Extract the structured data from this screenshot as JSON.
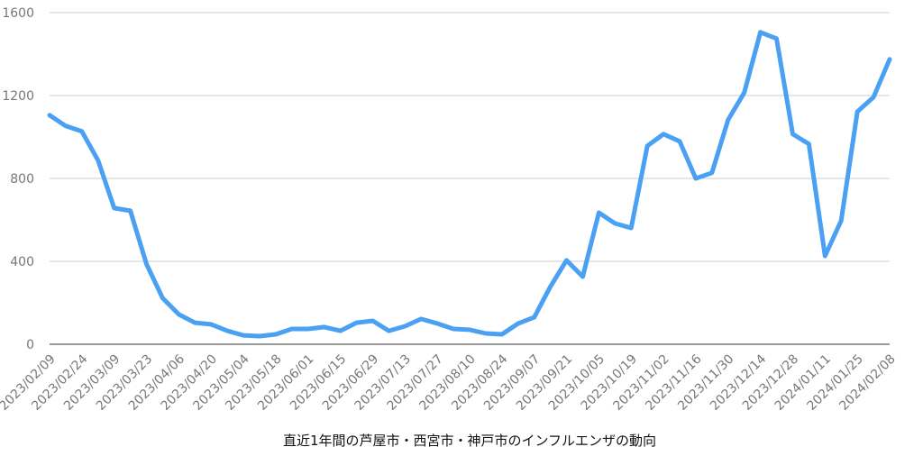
{
  "chart_data": {
    "type": "line",
    "title": "直近1年間の芦屋市・西宮市・神戸市のインフルエンザの動向",
    "categories": [
      "2023/02/09",
      null,
      "2023/02/24",
      null,
      "2023/03/09",
      null,
      "2023/03/23",
      null,
      "2023/04/06",
      null,
      "2023/04/20",
      null,
      "2023/05/04",
      null,
      "2023/05/18",
      null,
      "2023/06/01",
      null,
      "2023/06/15",
      null,
      "2023/06/29",
      null,
      "2023/07/13",
      null,
      "2023/07/27",
      null,
      "2023/08/10",
      null,
      "2023/08/24",
      null,
      "2023/09/07",
      null,
      "2023/09/21",
      null,
      "2023/10/05",
      null,
      "2023/10/19",
      null,
      "2023/11/02",
      null,
      "2023/11/16",
      null,
      "2023/11/30",
      null,
      "2023/12/14",
      null,
      "2023/12/28",
      null,
      "2024/01/11",
      null,
      "2024/01/25",
      null,
      "2024/02/08"
    ],
    "values": [
      1105,
      1053,
      1027,
      887,
      657,
      644,
      387,
      222,
      144,
      104,
      96,
      65,
      43,
      39,
      48,
      74,
      74,
      83,
      65,
      104,
      113,
      65,
      87,
      122,
      100,
      74,
      70,
      52,
      48,
      100,
      130,
      278,
      405,
      326,
      635,
      583,
      561,
      957,
      1014,
      979,
      800,
      827,
      1083,
      1214,
      1505,
      1475,
      1014,
      966,
      426,
      596,
      1122,
      1192,
      1375
    ],
    "color": "#4aa0f2",
    "ylim": [
      0,
      1600
    ],
    "yticks": [
      0,
      400,
      800,
      1200,
      1600
    ],
    "grid": true
  }
}
